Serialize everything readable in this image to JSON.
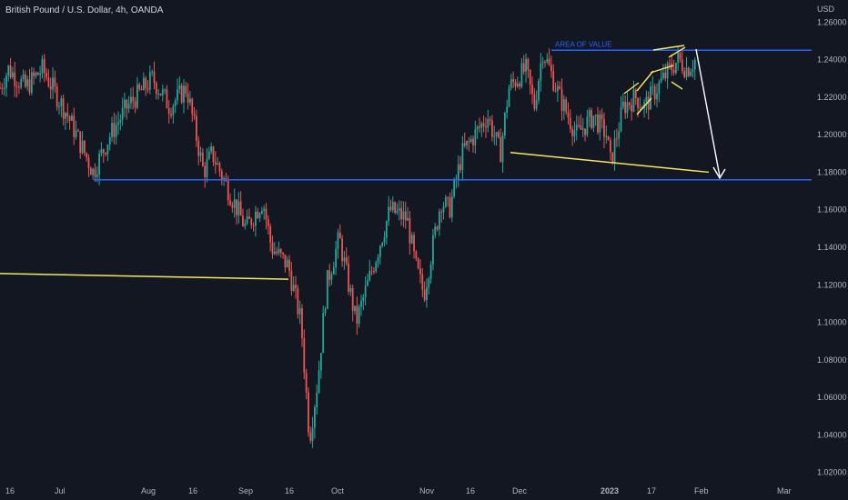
{
  "header": {
    "title": "British Pound / U.S. Dollar, 4h, OANDA",
    "currency": "USD"
  },
  "colors": {
    "background": "#131722",
    "up": "#26a69a",
    "down": "#ef5350",
    "blue_line": "#2962ff",
    "yellow_line": "#f5e663",
    "arrow": "#ffffff",
    "axis_text": "#b2b5be"
  },
  "chart_data": {
    "type": "candlestick",
    "y_axis": {
      "ticks": [
        "1.26000",
        "1.24000",
        "1.22000",
        "1.20000",
        "1.18000",
        "1.16000",
        "1.14000",
        "1.12000",
        "1.10000",
        "1.08000",
        "1.06000",
        "1.04000",
        "1.02000"
      ],
      "ylim": [
        1.015,
        1.265
      ]
    },
    "x_axis": {
      "ticks": [
        "16",
        "Jul",
        "Aug",
        "16",
        "Sep",
        "16",
        "Oct",
        "Nov",
        "16",
        "Dec",
        "2023",
        "17",
        "Feb",
        "Mar"
      ]
    },
    "price_path": [
      [
        0.0,
        1.225
      ],
      [
        0.01,
        1.235
      ],
      [
        0.03,
        1.225
      ],
      [
        0.05,
        1.235
      ],
      [
        0.08,
        1.21
      ],
      [
        0.11,
        1.18
      ],
      [
        0.13,
        1.2
      ],
      [
        0.15,
        1.215
      ],
      [
        0.18,
        1.23
      ],
      [
        0.2,
        1.215
      ],
      [
        0.22,
        1.225
      ],
      [
        0.24,
        1.18
      ],
      [
        0.25,
        1.19
      ],
      [
        0.27,
        1.17
      ],
      [
        0.29,
        1.15
      ],
      [
        0.31,
        1.165
      ],
      [
        0.32,
        1.14
      ],
      [
        0.34,
        1.13
      ],
      [
        0.355,
        1.1
      ],
      [
        0.365,
        1.038
      ],
      [
        0.375,
        1.07
      ],
      [
        0.385,
        1.12
      ],
      [
        0.4,
        1.145
      ],
      [
        0.42,
        1.1
      ],
      [
        0.44,
        1.13
      ],
      [
        0.46,
        1.16
      ],
      [
        0.48,
        1.155
      ],
      [
        0.49,
        1.13
      ],
      [
        0.5,
        1.115
      ],
      [
        0.52,
        1.165
      ],
      [
        0.53,
        1.16
      ],
      [
        0.545,
        1.19
      ],
      [
        0.56,
        1.2
      ],
      [
        0.575,
        1.21
      ],
      [
        0.59,
        1.19
      ],
      [
        0.6,
        1.225
      ],
      [
        0.62,
        1.235
      ],
      [
        0.63,
        1.215
      ],
      [
        0.64,
        1.245
      ],
      [
        0.66,
        1.22
      ],
      [
        0.68,
        1.2
      ],
      [
        0.7,
        1.21
      ],
      [
        0.715,
        1.2
      ],
      [
        0.72,
        1.185
      ],
      [
        0.735,
        1.215
      ],
      [
        0.75,
        1.22
      ],
      [
        0.76,
        1.215
      ],
      [
        0.775,
        1.225
      ],
      [
        0.79,
        1.235
      ],
      [
        0.8,
        1.24
      ],
      [
        0.81,
        1.235
      ],
      [
        0.82,
        1.24
      ]
    ],
    "annotations": {
      "area_of_value_label": "AREA OF VALUE",
      "blue_levels": [
        1.245,
        1.176
      ],
      "yellow_long_line": [
        [
          0.0,
          1.126
        ],
        [
          0.34,
          1.123
        ]
      ],
      "yellow_trend_line": [
        [
          0.6,
          1.19
        ],
        [
          0.835,
          1.18
        ]
      ],
      "arrow": [
        [
          0.825,
          1.245
        ],
        [
          0.85,
          1.176
        ]
      ]
    }
  }
}
